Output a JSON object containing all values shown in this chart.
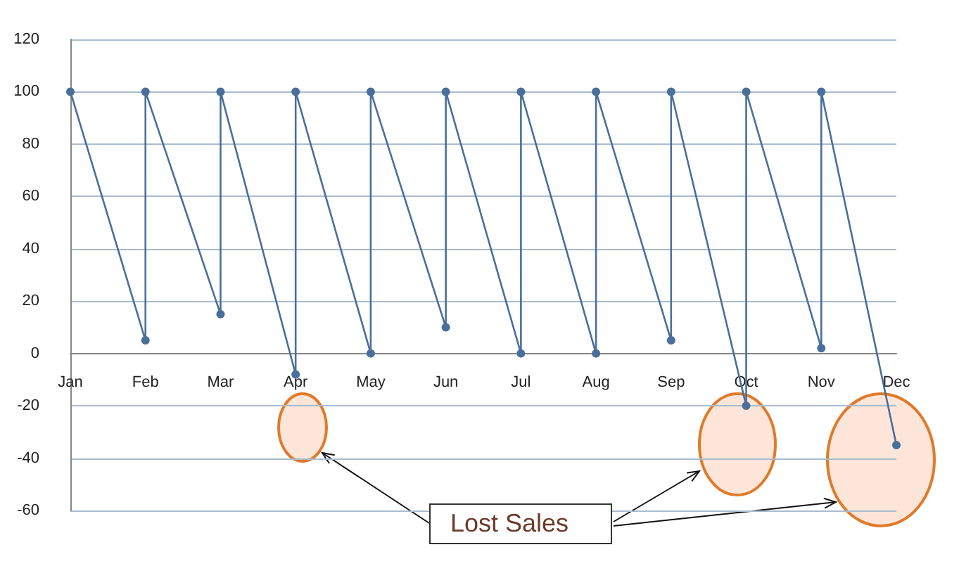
{
  "chart_data": {
    "type": "line",
    "categories": [
      "Jan",
      "Feb",
      "Mar",
      "Apr",
      "May",
      "Jun",
      "Jul",
      "Aug",
      "Sep",
      "Oct",
      "Nov",
      "Dec"
    ],
    "series": [
      {
        "color": "#4a6f9a",
        "x": [
          "Jan",
          "Feb",
          "Feb",
          "Mar",
          "Mar",
          "Apr",
          "Apr",
          "May",
          "May",
          "Jun",
          "Jun",
          "Jul",
          "Jul",
          "Aug",
          "Aug",
          "Sep",
          "Sep",
          "Oct",
          "Oct",
          "Nov",
          "Nov",
          "Dec"
        ],
        "values": [
          100,
          5,
          100,
          15,
          100,
          -8,
          100,
          0,
          100,
          10,
          100,
          0,
          100,
          0,
          100,
          5,
          100,
          -20,
          100,
          2,
          100,
          -35
        ]
      }
    ],
    "ylim": [
      -60,
      120
    ],
    "yticks": [
      -60,
      -40,
      -20,
      0,
      20,
      40,
      60,
      80,
      100,
      120
    ],
    "grid": "y",
    "marker": "circle",
    "line_style": "solid",
    "annotations": [
      "Lost Sales"
    ]
  }
}
